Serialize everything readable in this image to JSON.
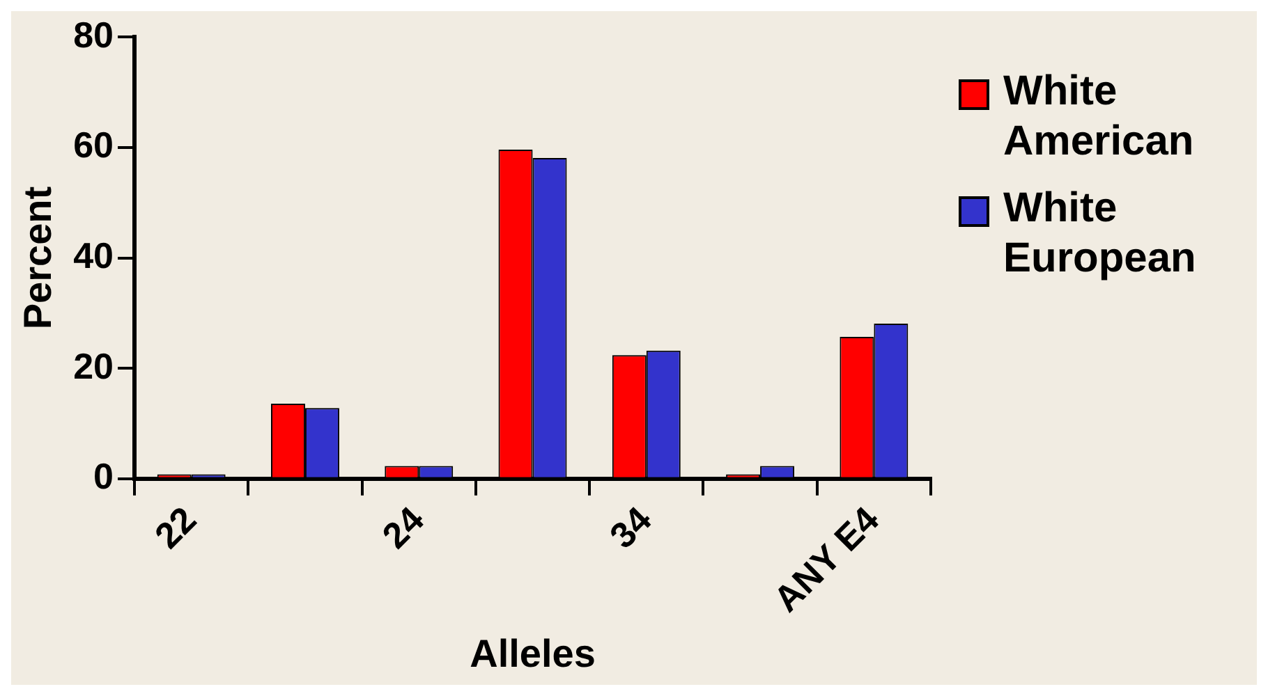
{
  "chart_data": {
    "type": "bar",
    "xlabel": "Alleles",
    "ylabel": "Percent",
    "categories": [
      "22",
      null,
      "24",
      null,
      "34",
      null,
      "ANY E4"
    ],
    "series": [
      {
        "name": "White American",
        "color": "#ff0000",
        "values": [
          0.8,
          13.6,
          2.3,
          59.6,
          22.4,
          0.8,
          25.7
        ]
      },
      {
        "name": "White European",
        "color": "#3333cc",
        "values": [
          0.8,
          12.8,
          2.3,
          58.1,
          23.2,
          2.3,
          28.1
        ]
      }
    ],
    "ylim": [
      0,
      80
    ],
    "yticks": [
      0,
      20,
      40,
      60,
      80
    ],
    "grid": false,
    "legend": "right"
  }
}
